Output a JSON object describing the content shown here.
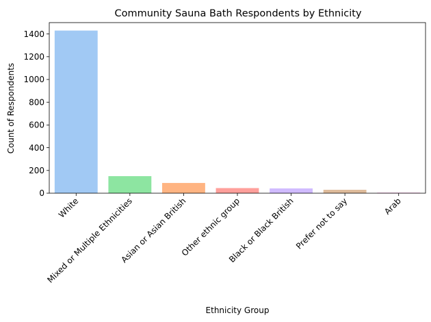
{
  "chart_data": {
    "type": "bar",
    "title": "Community Sauna Bath Respondents by Ethnicity",
    "xlabel": "Ethnicity Group",
    "ylabel": "Count of Respondents",
    "ylim": [
      0,
      1500
    ],
    "yticks": [
      0,
      200,
      400,
      600,
      800,
      1000,
      1200,
      1400
    ],
    "grid": false,
    "categories": [
      "White",
      "Mixed or Multiple Ethnicities",
      "Asian or Asian British",
      "Other ethnic group",
      "Black or Black British",
      "Prefer not to say",
      "Arab"
    ],
    "values": [
      1430,
      150,
      90,
      45,
      42,
      30,
      5
    ],
    "colors": [
      "#a1c9f4",
      "#8de5a1",
      "#ffb482",
      "#ff9f9b",
      "#d0bbff",
      "#debb9b",
      "#fab0e4"
    ]
  }
}
